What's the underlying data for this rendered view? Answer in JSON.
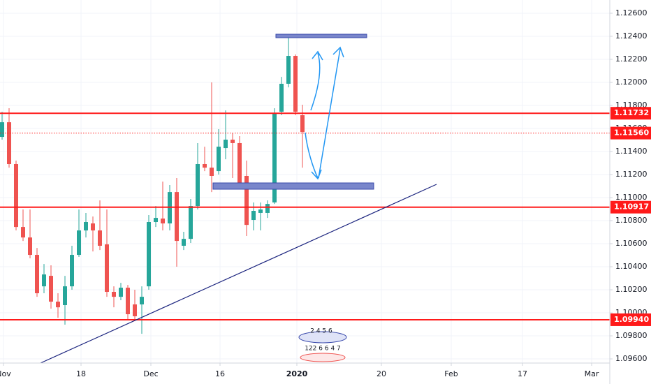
{
  "chart_data": {
    "type": "candlestick",
    "up_color": "#26a69a",
    "down_color": "#ef5350",
    "level_color": "#ff1a1a",
    "grid": true,
    "xlim": [
      0,
      87.3
    ],
    "ylim": [
      1.09564,
      1.12715
    ],
    "x": [
      0.3,
      1.3,
      2.3,
      3.3,
      4.3,
      5.3,
      6.3,
      7.3,
      8.3,
      9.3,
      10.3,
      11.3,
      12.3,
      13.3,
      14.3,
      15.3,
      16.3,
      17.3,
      18.3,
      19.3,
      20.3,
      21.3,
      22.3,
      23.3,
      24.3,
      25.3,
      26.3,
      27.3,
      28.3,
      29.3,
      30.3,
      31.3,
      32.3,
      33.3,
      34.3,
      35.3,
      36.3,
      37.3,
      38.3,
      39.3,
      40.3,
      41.3,
      42.3,
      43.3
    ],
    "open": [
      1.11527,
      1.11654,
      1.11291,
      1.10745,
      1.10654,
      1.10503,
      1.1023,
      1.10321,
      1.10097,
      1.10067,
      1.1023,
      1.10503,
      1.10715,
      1.10776,
      1.10715,
      1.10594,
      1.10182,
      1.10139,
      1.10218,
      1.10073,
      1.10073,
      1.1023,
      1.10788,
      1.10818,
      1.10776,
      1.11048,
      1.10582,
      1.10642,
      1.10927,
      1.11291,
      1.1126,
      1.1123,
      1.1143,
      1.11503,
      1.11473,
      1.11188,
      1.10806,
      1.10867,
      1.10867,
      1.10958,
      1.11745,
      1.11988,
      1.1223,
      1.11715
    ],
    "high": [
      1.11745,
      1.11776,
      1.11321,
      1.10897,
      1.10897,
      1.10563,
      1.10424,
      1.10412,
      1.1017,
      1.10321,
      1.10582,
      1.10897,
      1.10867,
      1.10836,
      1.10976,
      1.10897,
      1.1023,
      1.1026,
      1.10242,
      1.102,
      1.1023,
      1.10849,
      1.10927,
      1.11139,
      1.11109,
      1.1117,
      1.10703,
      1.10988,
      1.11473,
      1.11442,
      1.12,
      1.11594,
      1.11757,
      1.11563,
      1.11533,
      1.11321,
      1.10958,
      1.10958,
      1.10976,
      1.11776,
      1.12048,
      1.124,
      1.12242,
      1.11806
    ],
    "low": [
      1.11503,
      1.1126,
      1.10715,
      1.10624,
      1.10473,
      1.10139,
      1.1017,
      1.10036,
      1.09957,
      1.09897,
      1.102,
      1.10485,
      1.10654,
      1.10533,
      1.10545,
      1.10139,
      1.10048,
      1.10109,
      1.09939,
      1.09927,
      1.09818,
      1.102,
      1.10745,
      1.10715,
      1.10715,
      1.104,
      1.10545,
      1.10606,
      1.10897,
      1.1123,
      1.11048,
      1.112,
      1.11333,
      1.1117,
      1.11091,
      1.10667,
      1.10715,
      1.10715,
      1.10824,
      1.10945,
      1.11715,
      1.11957,
      1.11715,
      1.1126
    ],
    "close": [
      1.11654,
      1.11291,
      1.10745,
      1.10654,
      1.10503,
      1.1017,
      1.10333,
      1.10097,
      1.10048,
      1.1023,
      1.10503,
      1.10715,
      1.10788,
      1.10715,
      1.10582,
      1.10182,
      1.10139,
      1.10218,
      1.09988,
      1.0997,
      1.10139,
      1.10788,
      1.10824,
      1.10776,
      1.11048,
      1.10624,
      1.10642,
      1.10927,
      1.11291,
      1.1126,
      1.11188,
      1.11442,
      1.11503,
      1.11473,
      1.11127,
      1.10763,
      1.10885,
      1.10897,
      1.10945,
      1.11733,
      1.11988,
      1.1223,
      1.11745,
      1.11569
    ],
    "yticks": [
      {
        "value": 1.126,
        "label": "1.12600"
      },
      {
        "value": 1.124,
        "label": "1.12400"
      },
      {
        "value": 1.122,
        "label": "1.12200"
      },
      {
        "value": 1.12,
        "label": "1.12000"
      },
      {
        "value": 1.118,
        "label": "1.11800"
      },
      {
        "value": 1.116,
        "label": "1.11600"
      },
      {
        "value": 1.114,
        "label": "1.11400"
      },
      {
        "value": 1.112,
        "label": "1.11200"
      },
      {
        "value": 1.11,
        "label": "1.11000"
      },
      {
        "value": 1.108,
        "label": "1.10800"
      },
      {
        "value": 1.106,
        "label": "1.10600"
      },
      {
        "value": 1.104,
        "label": "1.10400"
      },
      {
        "value": 1.102,
        "label": "1.10200"
      },
      {
        "value": 1.1,
        "label": "1.10000"
      },
      {
        "value": 1.098,
        "label": "1.09800"
      },
      {
        "value": 1.096,
        "label": "1.09600"
      }
    ],
    "xticks": [
      {
        "value": 0.5,
        "label": "Nov"
      },
      {
        "value": 11.6,
        "label": "18"
      },
      {
        "value": 21.6,
        "label": "Dec"
      },
      {
        "value": 31.5,
        "label": "16"
      },
      {
        "value": 42.5,
        "label": "2020"
      },
      {
        "value": 54.6,
        "label": "20"
      },
      {
        "value": 64.6,
        "label": "Feb"
      },
      {
        "value": 74.8,
        "label": "17"
      },
      {
        "value": 84.7,
        "label": "Mar"
      }
    ],
    "levels": [
      {
        "value": 1.11732,
        "label": "1.11732"
      },
      {
        "value": 1.1156,
        "label": "1.11560",
        "dashed": true
      },
      {
        "value": 1.10917,
        "label": "1.10917"
      },
      {
        "value": 1.0994,
        "label": "1.09940"
      }
    ],
    "annotations": [
      "2 4 5 6",
      "122 6 6 4 7"
    ]
  }
}
